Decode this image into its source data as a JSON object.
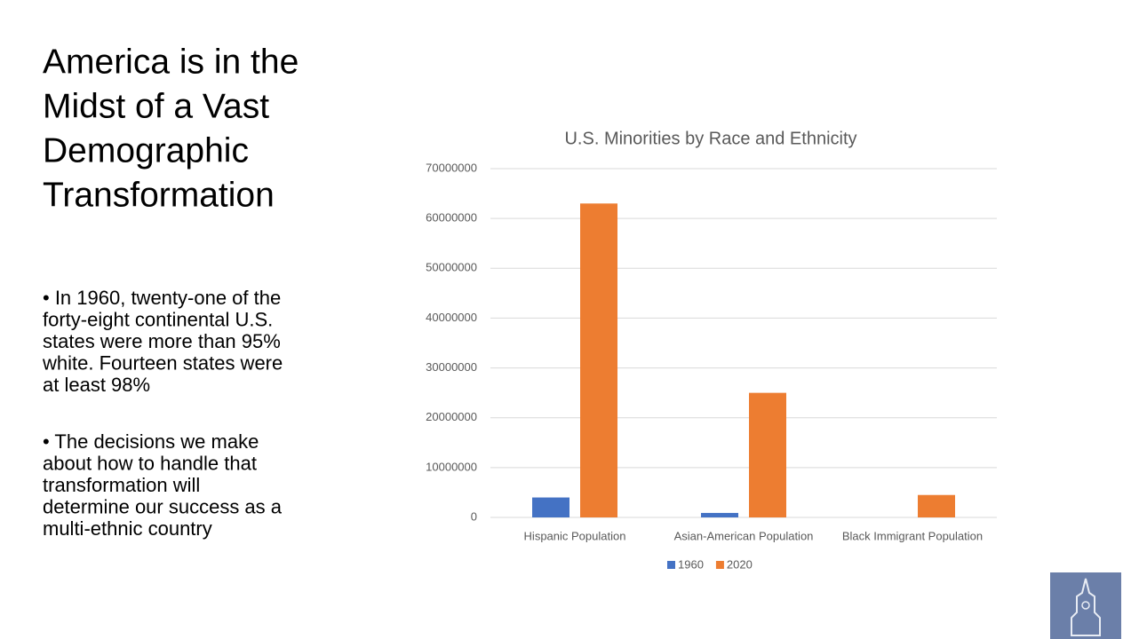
{
  "slide": {
    "title_lines": [
      "America is in the",
      "Midst of a Vast",
      "Demographic",
      "Transformation"
    ],
    "bullets": [
      [
        "•  In 1960, twenty-one of the",
        "forty-eight  continental U.S.",
        "states were more than 95%",
        "white. Fourteen states were",
        "at least 98%"
      ],
      [
        "•  The decisions we make",
        "about how to handle that",
        "transformation will",
        "determine our success as a",
        "multi-ethnic country"
      ]
    ]
  },
  "chart_data": {
    "type": "bar",
    "title": "U.S. Minorities by Race and Ethnicity",
    "categories": [
      "Hispanic Population",
      "Asian-American Population",
      "Black Immigrant Population"
    ],
    "series": [
      {
        "name": "1960",
        "color": "#4472c4",
        "values": [
          4000000,
          900000,
          0
        ]
      },
      {
        "name": "2020",
        "color": "#ed7d31",
        "values": [
          63000000,
          25000000,
          4500000
        ]
      }
    ],
    "ylim": [
      0,
      70000000
    ],
    "yticks": [
      0,
      10000000,
      20000000,
      30000000,
      40000000,
      50000000,
      60000000,
      70000000
    ],
    "grid": true,
    "legend": "bottom"
  }
}
